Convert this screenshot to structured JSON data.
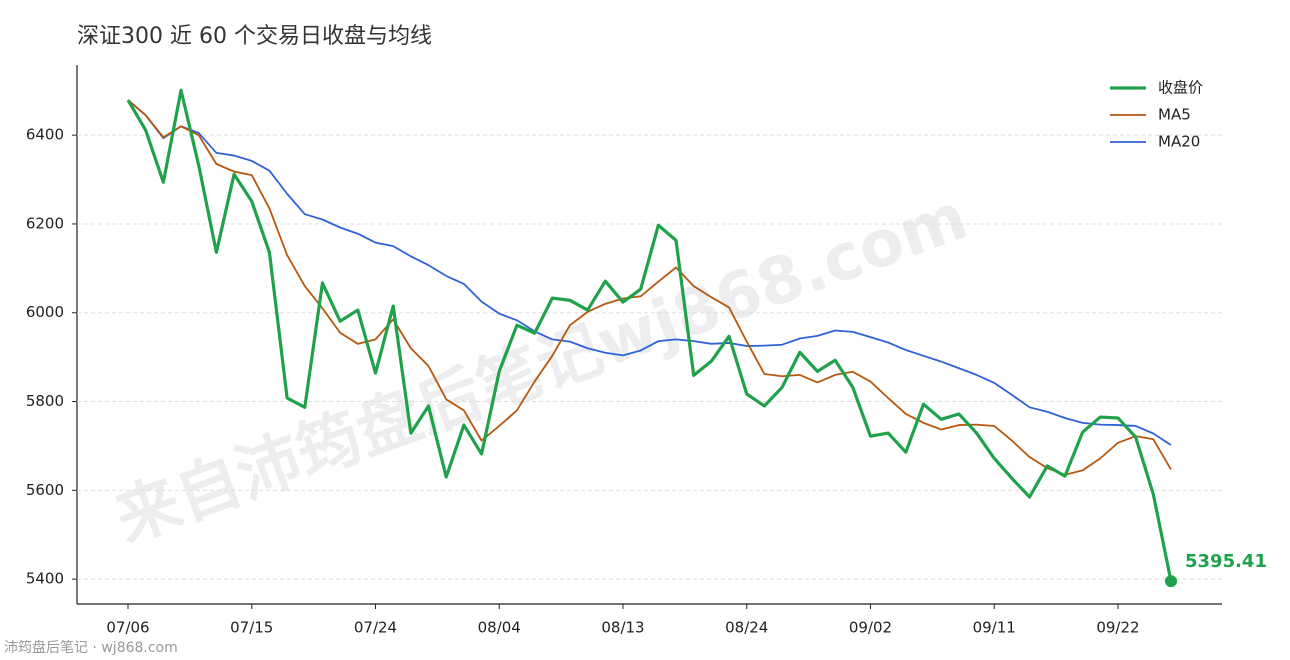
{
  "chart_data": {
    "type": "line",
    "title": "深证300 近 60 个交易日收盘与均线",
    "categories": [
      "07/06",
      null,
      null,
      null,
      null,
      null,
      null,
      "07/15",
      null,
      null,
      null,
      null,
      null,
      null,
      "07/24",
      null,
      null,
      null,
      null,
      null,
      null,
      "08/04",
      null,
      null,
      null,
      null,
      null,
      null,
      "08/13",
      null,
      null,
      null,
      null,
      null,
      null,
      "08/24",
      null,
      null,
      null,
      null,
      null,
      null,
      "09/02",
      null,
      null,
      null,
      null,
      null,
      null,
      "09/11",
      null,
      null,
      null,
      null,
      null,
      null,
      "09/22",
      null,
      null,
      null
    ],
    "series": [
      {
        "name": "收盘价",
        "color": "#1fa24a",
        "width": 3.2,
        "values": [
          6479,
          6411,
          6294,
          6501,
          6332,
          6136,
          6312,
          6251,
          6136,
          5808,
          5787,
          6067,
          5981,
          6006,
          5864,
          6015,
          5729,
          5790,
          5630,
          5747,
          5682,
          5868,
          5972,
          5954,
          6033,
          6028,
          6006,
          6071,
          6024,
          6053,
          6197,
          6163,
          5859,
          5891,
          5947,
          5817,
          5790,
          5832,
          5911,
          5868,
          5893,
          5832,
          5722,
          5729,
          5686,
          5794,
          5760,
          5772,
          5729,
          5672,
          5627,
          5585,
          5655,
          5632,
          5731,
          5765,
          5763,
          5720,
          5591,
          5395.41
        ]
      },
      {
        "name": "MA5",
        "color": "#b8570f",
        "width": 1.8,
        "values": [
          6479,
          6445,
          6395,
          6420,
          6400,
          6335,
          6318,
          6310,
          6235,
          6130,
          6060,
          6010,
          5955,
          5930,
          5940,
          5985,
          5920,
          5880,
          5805,
          5780,
          5712,
          5745,
          5780,
          5845,
          5903,
          5972,
          6002,
          6020,
          6032,
          6037,
          6070,
          6102,
          6060,
          6035,
          6012,
          5935,
          5862,
          5857,
          5860,
          5843,
          5860,
          5867,
          5845,
          5808,
          5772,
          5752,
          5737,
          5747,
          5748,
          5745,
          5712,
          5675,
          5650,
          5635,
          5645,
          5672,
          5707,
          5722,
          5715,
          5647
        ]
      },
      {
        "name": "MA20",
        "color": "#2f62d8",
        "width": 1.8,
        "values": [
          6479,
          6445,
          6393,
          6420,
          6405,
          6360,
          6354,
          6342,
          6320,
          6268,
          6222,
          6210,
          6192,
          6178,
          6158,
          6150,
          6127,
          6107,
          6083,
          6065,
          6025,
          5998,
          5983,
          5958,
          5940,
          5935,
          5920,
          5910,
          5904,
          5915,
          5936,
          5940,
          5936,
          5930,
          5932,
          5925,
          5926,
          5928,
          5942,
          5948,
          5960,
          5957,
          5945,
          5933,
          5916,
          5903,
          5890,
          5875,
          5860,
          5842,
          5815,
          5787,
          5777,
          5763,
          5752,
          5748,
          5747,
          5745,
          5728,
          5702
        ]
      }
    ],
    "ylim": [
      5344,
      6558
    ],
    "yticks": [
      5400,
      5600,
      5800,
      6000,
      6200,
      6400
    ],
    "grid": true,
    "legend": "upper right"
  },
  "watermark": "来自沛筠盘后笔记wj868.com",
  "footer": "沛筠盘后笔记 · wj868.com"
}
